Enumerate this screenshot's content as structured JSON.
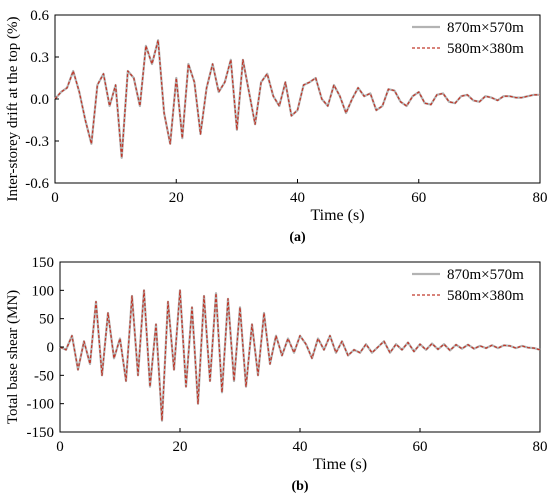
{
  "chart_data": [
    {
      "type": "line",
      "panel_label": "(a)",
      "xlabel": "Time (s)",
      "ylabel": "Inter-storey drift at the top (%)",
      "xlim": [
        0,
        80
      ],
      "ylim": [
        -0.6,
        0.6
      ],
      "xticks": [
        0,
        20,
        40,
        60,
        80
      ],
      "xtick_labels": [
        "0",
        "20",
        "40",
        "60",
        "80"
      ],
      "yticks": [
        -0.6,
        -0.3,
        0.0,
        0.3,
        0.6
      ],
      "ytick_labels": [
        "-0.6",
        "-0.3",
        "0.0",
        "0.3",
        "0.6"
      ],
      "grid": false,
      "legend_position": "top-right",
      "x": [
        0,
        1,
        2,
        3,
        4,
        5,
        6,
        7,
        8,
        9,
        10,
        11,
        12,
        13,
        14,
        15,
        16,
        17,
        18,
        19,
        20,
        21,
        22,
        23,
        24,
        25,
        26,
        27,
        28,
        29,
        30,
        31,
        32,
        33,
        34,
        35,
        36,
        37,
        38,
        39,
        40,
        41,
        42,
        43,
        44,
        45,
        46,
        47,
        48,
        49,
        50,
        51,
        52,
        53,
        54,
        55,
        56,
        57,
        58,
        59,
        60,
        61,
        62,
        63,
        64,
        65,
        66,
        67,
        68,
        69,
        70,
        71,
        72,
        73,
        74,
        75,
        76,
        77,
        78,
        79,
        80
      ],
      "series": [
        {
          "name": "870m×570m",
          "color": "#b3b3b3",
          "line_style": "solid",
          "values": [
            0.0,
            0.05,
            0.08,
            0.2,
            0.05,
            -0.15,
            -0.32,
            0.1,
            0.18,
            -0.05,
            0.1,
            -0.42,
            0.2,
            0.15,
            -0.05,
            0.38,
            0.25,
            0.42,
            -0.1,
            -0.32,
            0.15,
            -0.28,
            0.25,
            0.12,
            -0.25,
            0.08,
            0.25,
            0.05,
            0.12,
            0.28,
            -0.22,
            0.28,
            0.05,
            -0.18,
            0.12,
            0.18,
            0.02,
            -0.05,
            0.12,
            -0.12,
            -0.08,
            0.1,
            0.12,
            0.15,
            0.0,
            -0.05,
            0.1,
            0.02,
            -0.1,
            0.0,
            0.08,
            0.02,
            0.04,
            -0.08,
            -0.05,
            0.07,
            0.06,
            -0.02,
            -0.05,
            0.02,
            0.05,
            -0.03,
            -0.04,
            0.03,
            0.04,
            -0.02,
            -0.03,
            0.02,
            0.03,
            -0.01,
            -0.02,
            0.02,
            0.01,
            -0.01,
            0.02,
            0.02,
            0.01,
            0.01,
            0.02,
            0.03,
            0.03
          ]
        },
        {
          "name": "580m×380m",
          "color": "#c0392b",
          "line_style": "dashed",
          "values": [
            0.0,
            0.05,
            0.08,
            0.2,
            0.05,
            -0.15,
            -0.32,
            0.1,
            0.18,
            -0.05,
            0.1,
            -0.42,
            0.2,
            0.15,
            -0.05,
            0.38,
            0.25,
            0.42,
            -0.1,
            -0.32,
            0.15,
            -0.28,
            0.25,
            0.12,
            -0.25,
            0.08,
            0.25,
            0.05,
            0.12,
            0.28,
            -0.22,
            0.28,
            0.05,
            -0.18,
            0.12,
            0.18,
            0.02,
            -0.05,
            0.12,
            -0.12,
            -0.08,
            0.1,
            0.12,
            0.15,
            0.0,
            -0.05,
            0.1,
            0.02,
            -0.1,
            0.0,
            0.08,
            0.02,
            0.04,
            -0.08,
            -0.05,
            0.07,
            0.06,
            -0.02,
            -0.05,
            0.02,
            0.05,
            -0.03,
            -0.04,
            0.03,
            0.04,
            -0.02,
            -0.03,
            0.02,
            0.03,
            -0.01,
            -0.02,
            0.02,
            0.01,
            -0.01,
            0.02,
            0.02,
            0.01,
            0.01,
            0.02,
            0.03,
            0.03
          ]
        }
      ]
    },
    {
      "type": "line",
      "panel_label": "(b)",
      "xlabel": "Time (s)",
      "ylabel": "Total base shear (MN)",
      "xlim": [
        0,
        80
      ],
      "ylim": [
        -150,
        150
      ],
      "xticks": [
        0,
        20,
        40,
        60,
        80
      ],
      "xtick_labels": [
        "0",
        "20",
        "40",
        "60",
        "80"
      ],
      "yticks": [
        -150,
        -100,
        -50,
        0,
        50,
        100,
        150
      ],
      "ytick_labels": [
        "-150",
        "-100",
        "-50",
        "0",
        "50",
        "100",
        "150"
      ],
      "grid": false,
      "legend_position": "top-right",
      "x": [
        0,
        1,
        2,
        3,
        4,
        5,
        6,
        7,
        8,
        9,
        10,
        11,
        12,
        13,
        14,
        15,
        16,
        17,
        18,
        19,
        20,
        21,
        22,
        23,
        24,
        25,
        26,
        27,
        28,
        29,
        30,
        31,
        32,
        33,
        34,
        35,
        36,
        37,
        38,
        39,
        40,
        41,
        42,
        43,
        44,
        45,
        46,
        47,
        48,
        49,
        50,
        51,
        52,
        53,
        54,
        55,
        56,
        57,
        58,
        59,
        60,
        61,
        62,
        63,
        64,
        65,
        66,
        67,
        68,
        69,
        70,
        71,
        72,
        73,
        74,
        75,
        76,
        77,
        78,
        79,
        80
      ],
      "series": [
        {
          "name": "870m×570m",
          "color": "#b3b3b3",
          "line_style": "solid",
          "values": [
            0,
            -5,
            20,
            -40,
            10,
            -30,
            80,
            -50,
            60,
            -20,
            15,
            -60,
            90,
            -50,
            100,
            -70,
            40,
            -130,
            80,
            -40,
            100,
            -70,
            70,
            -100,
            90,
            -60,
            95,
            -80,
            85,
            -60,
            70,
            -70,
            40,
            -50,
            60,
            -30,
            20,
            -15,
            15,
            -10,
            20,
            5,
            -20,
            15,
            -5,
            20,
            -10,
            10,
            -15,
            -5,
            -10,
            5,
            -10,
            0,
            10,
            -10,
            5,
            -5,
            8,
            -8,
            5,
            -5,
            6,
            -4,
            5,
            -6,
            4,
            -3,
            4,
            -3,
            2,
            -2,
            3,
            -2,
            3,
            2,
            -2,
            2,
            -1,
            -2,
            -5
          ]
        },
        {
          "name": "580m×380m",
          "color": "#c0392b",
          "line_style": "dashed",
          "values": [
            0,
            -5,
            20,
            -40,
            10,
            -30,
            80,
            -50,
            60,
            -20,
            15,
            -60,
            90,
            -50,
            100,
            -70,
            40,
            -130,
            80,
            -40,
            100,
            -70,
            70,
            -100,
            90,
            -60,
            95,
            -80,
            85,
            -60,
            70,
            -70,
            40,
            -50,
            60,
            -30,
            20,
            -15,
            15,
            -10,
            20,
            5,
            -20,
            15,
            -5,
            20,
            -10,
            10,
            -15,
            -5,
            -10,
            5,
            -10,
            0,
            10,
            -10,
            5,
            -5,
            8,
            -8,
            5,
            -5,
            6,
            -4,
            5,
            -6,
            4,
            -3,
            4,
            -3,
            2,
            -2,
            3,
            -2,
            3,
            2,
            -2,
            2,
            -1,
            -2,
            -5
          ]
        }
      ]
    }
  ]
}
